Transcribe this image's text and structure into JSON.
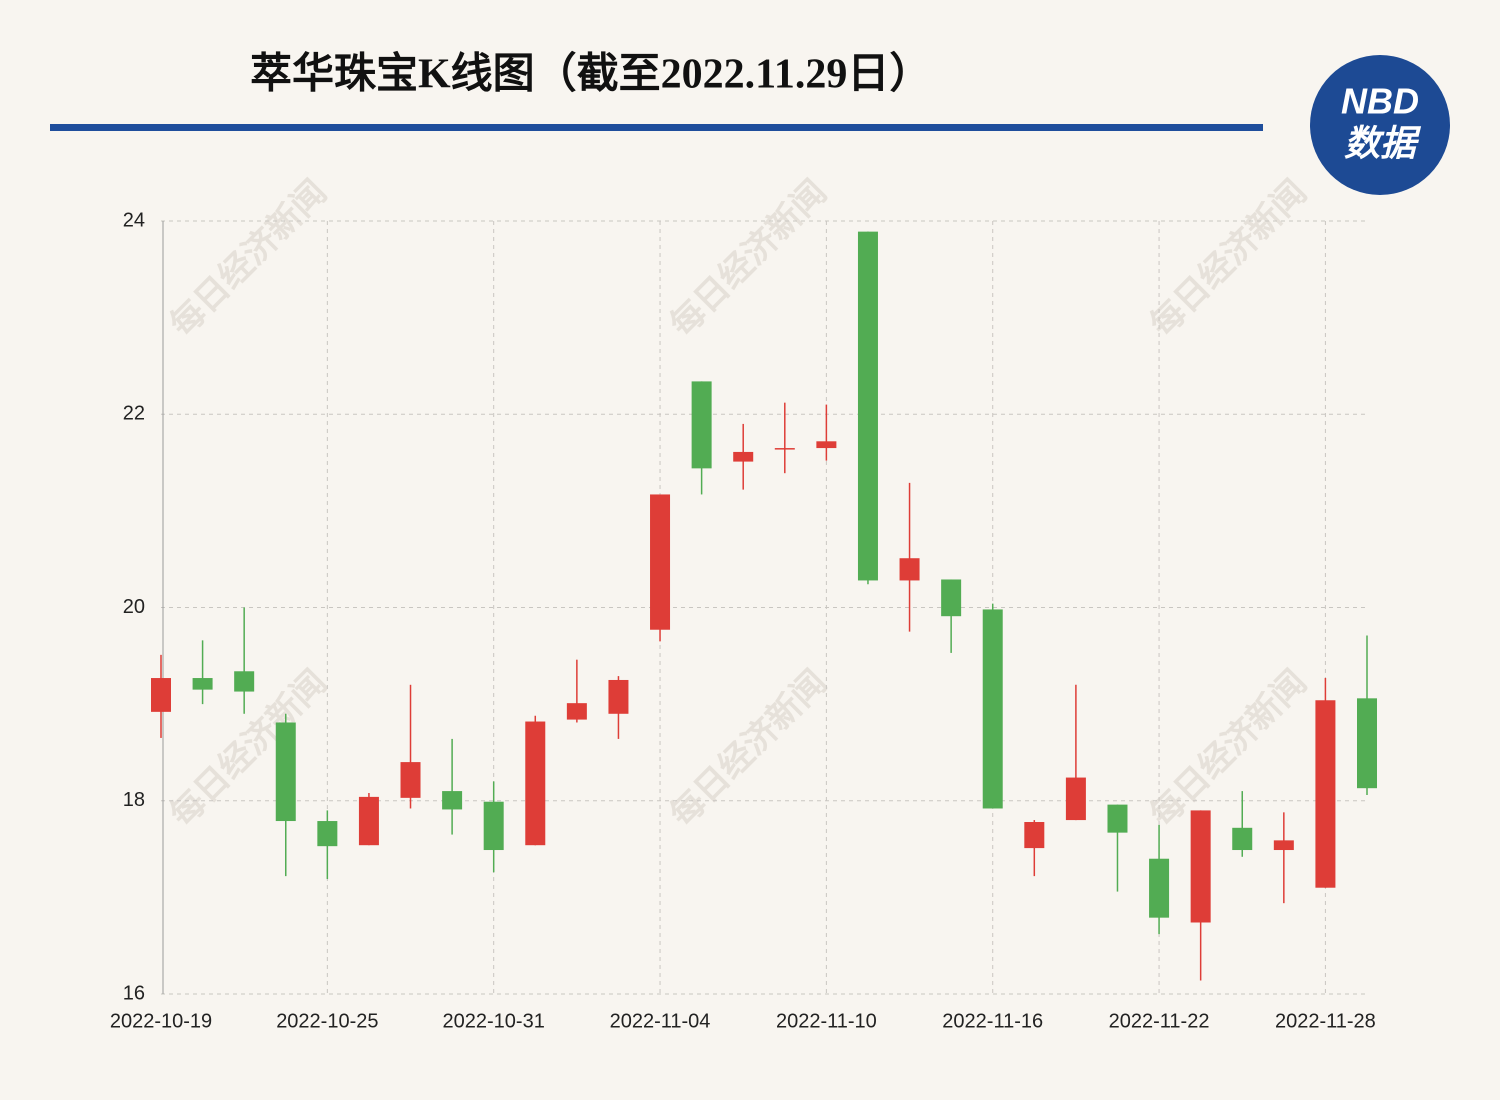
{
  "chart_data": {
    "type": "candlestick",
    "title": "萃华珠宝K线图（截至2022.11.29日）",
    "watermark": "每日经济新闻",
    "logo": {
      "brand": "NBD",
      "text": "数据"
    },
    "categories": [
      "2022-10-19",
      null,
      null,
      null,
      "2022-10-25",
      null,
      null,
      null,
      "2022-10-31",
      null,
      null,
      null,
      "2022-11-04",
      null,
      null,
      null,
      "2022-11-10",
      null,
      null,
      null,
      "2022-11-16",
      null,
      null,
      null,
      "2022-11-22",
      null,
      null,
      null,
      "2022-11-28",
      null
    ],
    "open": [
      18.92,
      19.27,
      19.34,
      18.81,
      17.79,
      17.54,
      18.03,
      18.1,
      17.99,
      17.54,
      18.84,
      18.9,
      19.77,
      22.34,
      21.51,
      21.64,
      21.65,
      23.89,
      20.28,
      20.29,
      19.98,
      17.51,
      17.8,
      17.96,
      17.4,
      16.74,
      17.72,
      17.49,
      17.1,
      19.06
    ],
    "high": [
      19.51,
      19.66,
      20.0,
      18.9,
      17.9,
      18.08,
      19.2,
      18.64,
      18.2,
      18.88,
      19.46,
      19.29,
      21.17,
      22.34,
      21.9,
      22.12,
      22.1,
      23.89,
      21.29,
      20.29,
      20.04,
      17.8,
      19.2,
      17.96,
      17.75,
      17.9,
      18.1,
      17.88,
      19.27,
      19.71
    ],
    "low": [
      18.65,
      19.0,
      18.9,
      17.22,
      17.19,
      17.54,
      17.92,
      17.65,
      17.26,
      17.54,
      18.81,
      18.64,
      19.65,
      21.17,
      21.22,
      21.39,
      21.52,
      20.24,
      19.75,
      19.53,
      17.92,
      17.22,
      17.8,
      17.06,
      16.62,
      16.14,
      17.42,
      16.94,
      17.1,
      18.06
    ],
    "close": [
      19.27,
      19.15,
      19.13,
      17.79,
      17.53,
      18.04,
      18.4,
      17.91,
      17.49,
      18.82,
      19.01,
      19.25,
      21.17,
      21.44,
      21.61,
      21.65,
      21.72,
      20.28,
      20.51,
      19.91,
      17.92,
      17.78,
      18.24,
      17.67,
      16.79,
      17.9,
      17.49,
      17.59,
      19.04,
      18.13
    ],
    "up_color": "#de3d37",
    "down_color": "#52ac53",
    "ylim": [
      16,
      24
    ],
    "yticks": [
      16,
      18,
      20,
      22,
      24
    ],
    "grid": true
  }
}
